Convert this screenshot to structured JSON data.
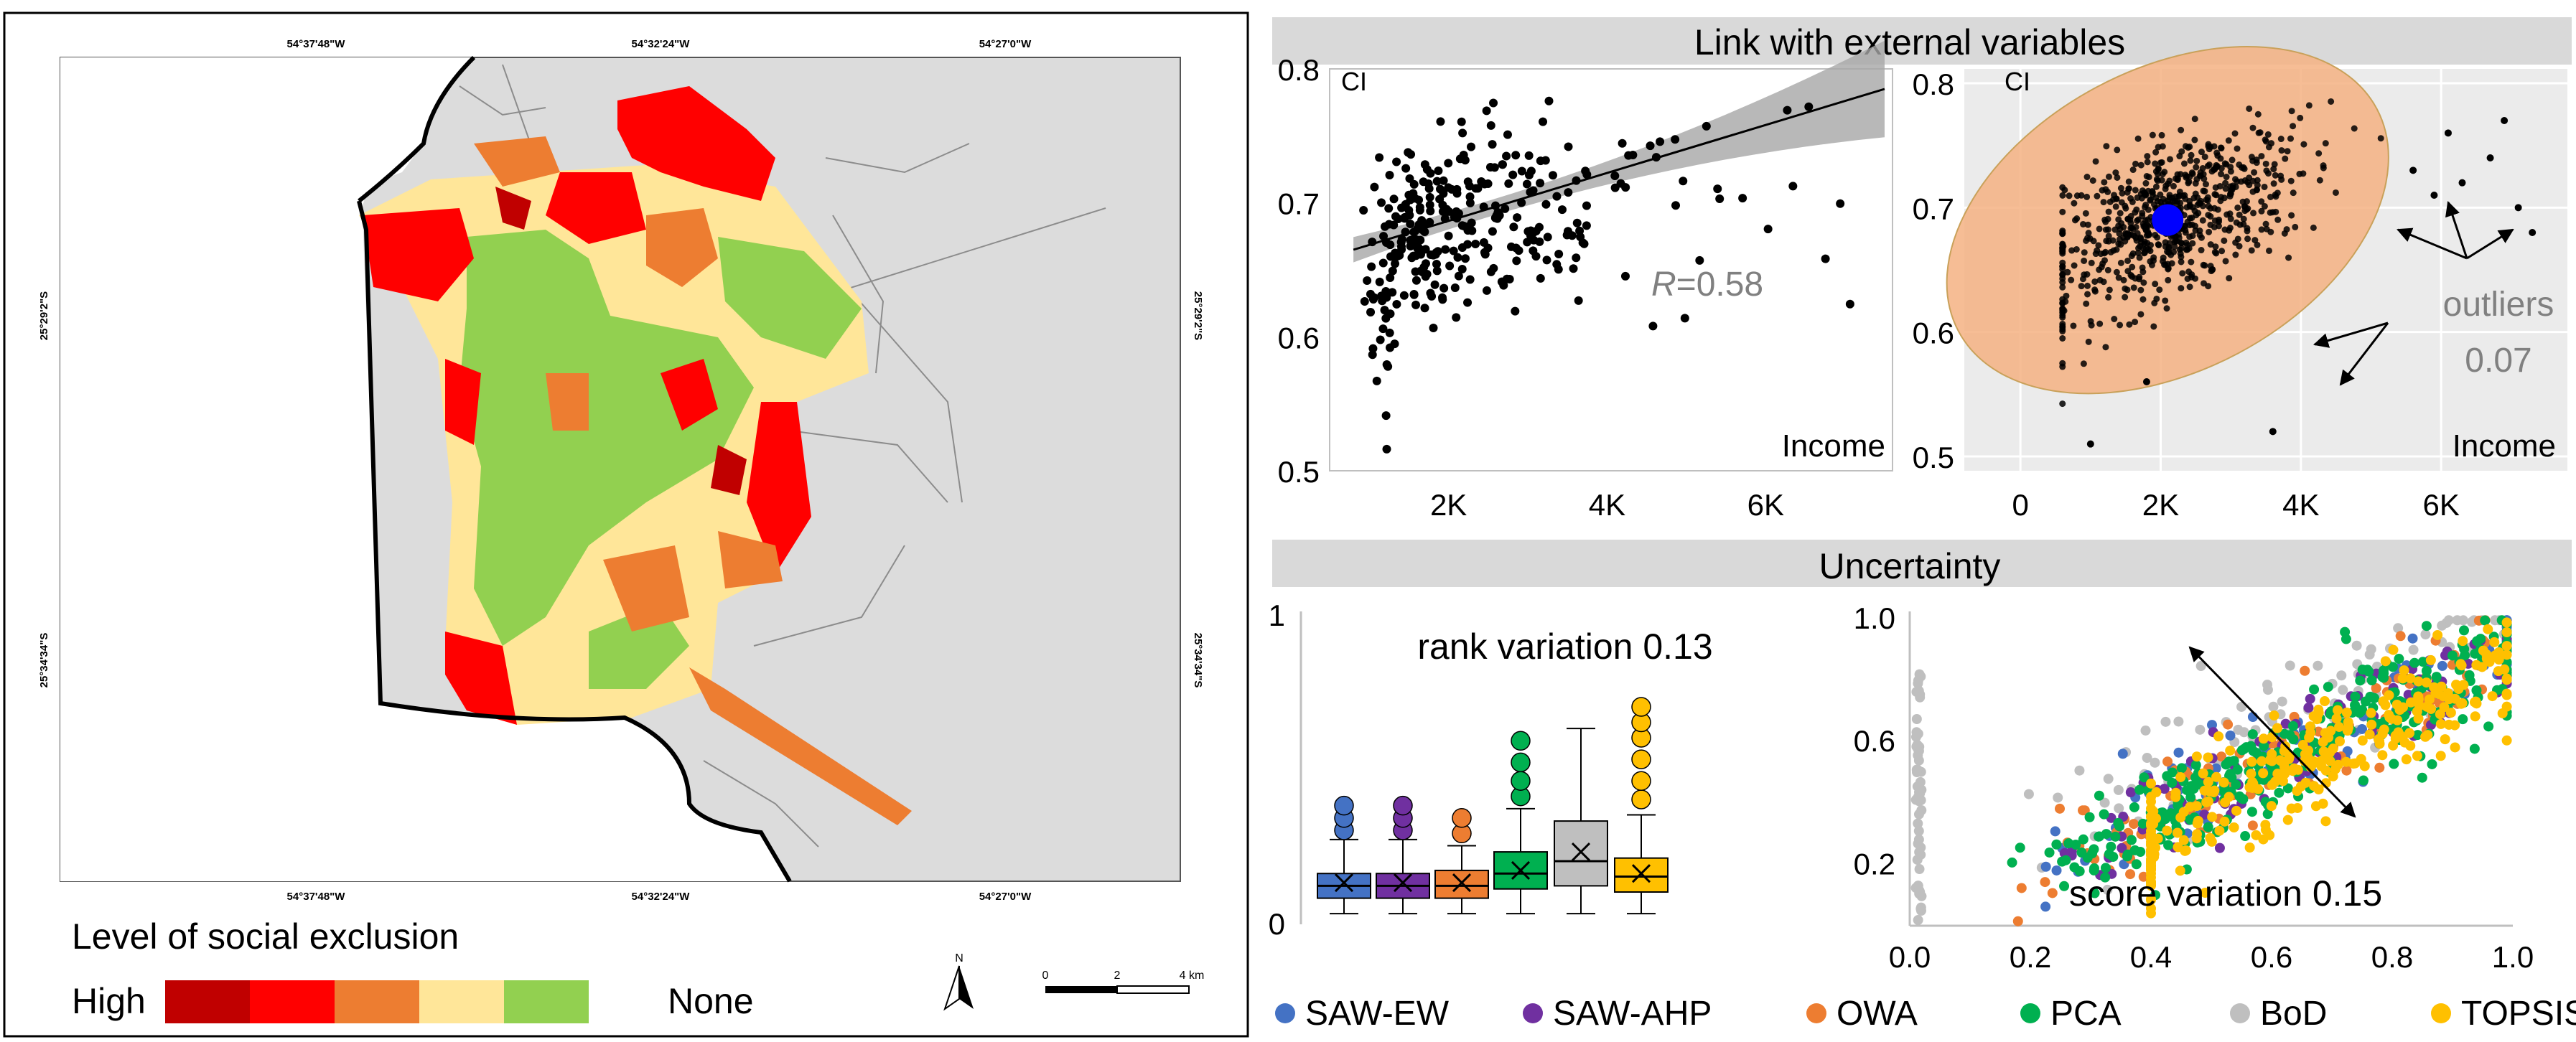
{
  "map": {
    "coords_top": [
      "54°37'48\"W",
      "54°32'24\"W",
      "54°27'0\"W"
    ],
    "coords_bottom": [
      "54°37'48\"W",
      "54°32'24\"W",
      "54°27'0\"W"
    ],
    "coords_left": [
      "25°29'2\"S",
      "25°34'34\"S"
    ],
    "coords_right": [
      "25°29'2\"S",
      "25°34'34\"S"
    ],
    "legend_title": "Level of social exclusion",
    "legend_high": "High",
    "legend_none": "None",
    "legend_colors": [
      "#c00000",
      "#ff0000",
      "#ed7d31",
      "#ffe699",
      "#92d050"
    ],
    "north_label": "N",
    "scale_labels": [
      "0",
      "2",
      "4 km"
    ],
    "colors": {
      "land": "#dcdcdc",
      "river": "#000000",
      "road": "#8c8c8c"
    }
  },
  "headers": {
    "external": "Link with external variables",
    "uncertainty": "Uncertainty"
  },
  "chart_data": [
    {
      "type": "scatter",
      "id": "scatter-regression",
      "ylabel": "CI",
      "xlabel": "Income",
      "x_ticks": [
        "2K",
        "4K",
        "6K"
      ],
      "y_ticks": [
        "0.8",
        "0.7",
        "0.6",
        "0.5"
      ],
      "xlim": [
        500,
        7600
      ],
      "ylim": [
        0.5,
        0.8
      ],
      "annotation_r": "R",
      "annotation_value": "=0.58",
      "regression": {
        "x": [
          800,
          7500
        ],
        "y": [
          0.665,
          0.785
        ]
      }
    },
    {
      "type": "scatter",
      "id": "scatter-outliers",
      "ylabel": "CI",
      "xlabel": "Income",
      "x_ticks": [
        "0",
        "2K",
        "4K",
        "6K"
      ],
      "y_ticks": [
        "0.8",
        "0.7",
        "0.6",
        "0.5"
      ],
      "xlim": [
        -800,
        7800
      ],
      "ylim": [
        0.5,
        0.8
      ],
      "centroid": [
        2100,
        0.69
      ],
      "annotation": "outliers",
      "annotation_value": "0.07"
    },
    {
      "type": "box",
      "id": "boxplot-rank",
      "title": "rank variation 0.13",
      "y_ticks": [
        "1",
        "0"
      ],
      "ylim": [
        0,
        1
      ],
      "series": [
        {
          "name": "SAW-EW",
          "color": "#4472c4",
          "q1": 0.08,
          "median": 0.12,
          "q3": 0.16,
          "mean": 0.13,
          "whisker_low": 0.03,
          "whisker_high": 0.27,
          "outliers": [
            0.3,
            0.34,
            0.38
          ]
        },
        {
          "name": "SAW-AHP",
          "color": "#7030a0",
          "q1": 0.08,
          "median": 0.12,
          "q3": 0.16,
          "mean": 0.13,
          "whisker_low": 0.03,
          "whisker_high": 0.27,
          "outliers": [
            0.3,
            0.34,
            0.38
          ]
        },
        {
          "name": "OWA",
          "color": "#ed7d31",
          "q1": 0.08,
          "median": 0.12,
          "q3": 0.17,
          "mean": 0.13,
          "whisker_low": 0.03,
          "whisker_high": 0.25,
          "outliers": [
            0.29,
            0.34
          ]
        },
        {
          "name": "PCA",
          "color": "#00b050",
          "q1": 0.11,
          "median": 0.16,
          "q3": 0.23,
          "mean": 0.17,
          "whisker_low": 0.03,
          "whisker_high": 0.37,
          "outliers": [
            0.41,
            0.46,
            0.52,
            0.59
          ]
        },
        {
          "name": "BoD",
          "color": "#bfbfbf",
          "q1": 0.12,
          "median": 0.2,
          "q3": 0.33,
          "mean": 0.23,
          "whisker_low": 0.03,
          "whisker_high": 0.63,
          "outliers": []
        },
        {
          "name": "TOPSIS",
          "color": "#ffc000",
          "q1": 0.1,
          "median": 0.15,
          "q3": 0.21,
          "mean": 0.16,
          "whisker_low": 0.03,
          "whisker_high": 0.35,
          "outliers": [
            0.4,
            0.46,
            0.53,
            0.6,
            0.65,
            0.7
          ]
        }
      ]
    },
    {
      "type": "scatter",
      "id": "scatter-scores",
      "title": "score variation 0.15",
      "x_ticks": [
        "0.0",
        "0.2",
        "0.4",
        "0.6",
        "0.8",
        "1.0"
      ],
      "y_ticks": [
        "1.0",
        "0.6",
        "0.2"
      ],
      "xlim": [
        0,
        1
      ],
      "ylim": [
        0,
        1
      ]
    }
  ],
  "legend": [
    {
      "label": "SAW-EW",
      "color": "#4472c4"
    },
    {
      "label": "SAW-AHP",
      "color": "#7030a0"
    },
    {
      "label": "OWA",
      "color": "#ed7d31"
    },
    {
      "label": "PCA",
      "color": "#00b050"
    },
    {
      "label": "BoD",
      "color": "#bfbfbf"
    },
    {
      "label": "TOPSIS",
      "color": "#ffc000"
    }
  ]
}
